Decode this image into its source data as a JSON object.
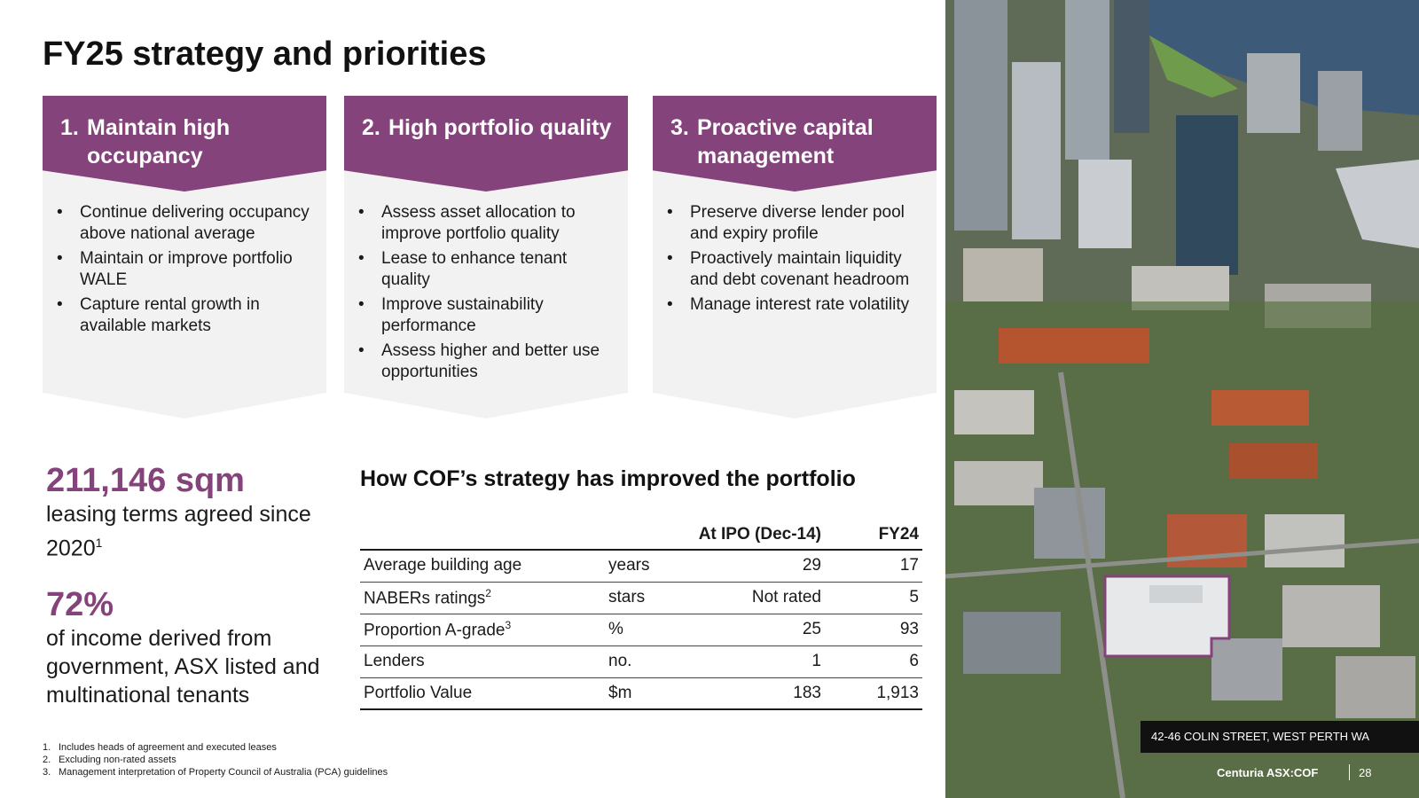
{
  "title": "FY25 strategy and priorities",
  "priorities": [
    {
      "number": "1.",
      "heading": "Maintain high occupancy",
      "bullets": [
        "Continue delivering occupancy above national average",
        "Maintain or improve portfolio WALE",
        "Capture rental growth in available markets"
      ]
    },
    {
      "number": "2.",
      "heading": "High portfolio quality",
      "bullets": [
        "Assess asset allocation to improve portfolio quality",
        "Lease to enhance tenant quality",
        "Improve sustainability performance",
        "Assess higher and better use opportunities"
      ]
    },
    {
      "number": "3.",
      "heading": "Proactive capital management",
      "bullets": [
        "Preserve diverse lender pool and expiry profile",
        "Proactively maintain liquidity and debt covenant headroom",
        "Manage interest rate volatility"
      ]
    }
  ],
  "stats": [
    {
      "value": "211,146 sqm",
      "description": "leasing terms agreed since 2020",
      "note": "1"
    },
    {
      "value": "72%",
      "description": "of income derived from government, ASX listed and multinational tenants",
      "note": ""
    }
  ],
  "table": {
    "title": "How COF’s strategy has improved the portfolio",
    "headers": [
      "",
      "",
      "At IPO (Dec-14)",
      "FY24"
    ],
    "rows": [
      {
        "metric": "Average building age",
        "note": "",
        "unit": "years",
        "ipo": "29",
        "fy24": "17"
      },
      {
        "metric": "NABERs ratings",
        "note": "2",
        "unit": "stars",
        "ipo": "Not rated",
        "fy24": "5"
      },
      {
        "metric": "Proportion A-grade",
        "note": "3",
        "unit": "%",
        "ipo": "25",
        "fy24": "93"
      },
      {
        "metric": "Lenders",
        "note": "",
        "unit": "no.",
        "ipo": "1",
        "fy24": "6"
      },
      {
        "metric": "Portfolio Value",
        "note": "",
        "unit": "$m",
        "ipo": "183",
        "fy24": "1,913"
      }
    ]
  },
  "footnotes": [
    {
      "num": "1.",
      "text": "Includes heads of agreement and executed leases"
    },
    {
      "num": "2.",
      "text": "Excluding non-rated assets"
    },
    {
      "num": "3.",
      "text": "Management interpretation of  Property Council of Australia (PCA) guidelines"
    }
  ],
  "photo": {
    "caption": "42-46 COLIN STREET, WEST PERTH WA"
  },
  "footer": {
    "brand": "Centuria ASX:COF",
    "page": "28"
  },
  "colors": {
    "accent": "#85437b",
    "card_bg": "#f2f2f3",
    "text": "#1a1a1a"
  }
}
